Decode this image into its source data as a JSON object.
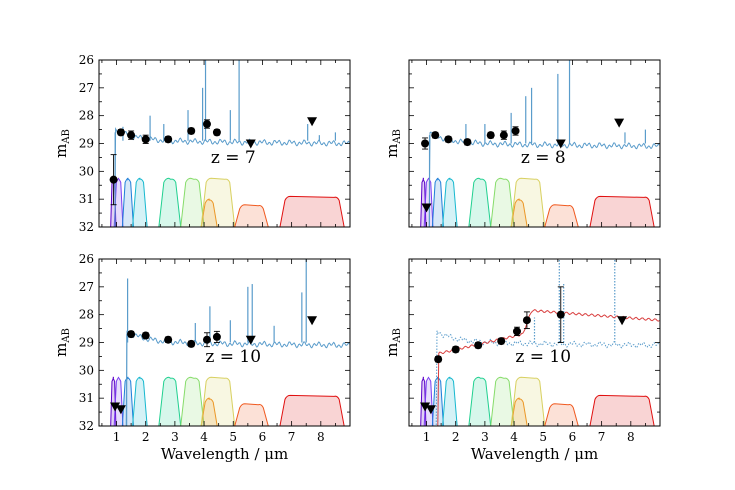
{
  "chart_data": [
    {
      "type": "scatter",
      "panel": "top-left",
      "label": "z = 7",
      "xlabel": "",
      "ylabel": "m_AB",
      "xlim": [
        0.4,
        9.0
      ],
      "ylim": [
        32,
        26
      ],
      "show_x_ticklabels": false,
      "show_y_ticklabels": true,
      "spectrum_level": 28.9,
      "spectrum_break": 0.95,
      "emission_lines": [
        [
          1.22,
          28.4
        ],
        [
          2.15,
          28.0
        ],
        [
          2.62,
          28.3
        ],
        [
          3.45,
          27.8
        ],
        [
          3.95,
          27.0
        ],
        [
          4.05,
          26.0
        ],
        [
          4.9,
          27.8
        ],
        [
          5.2,
          26.0
        ],
        [
          7.55,
          28.3
        ],
        [
          7.95,
          28.7
        ],
        [
          8.5,
          28.6
        ]
      ],
      "points": [
        {
          "x": 0.9,
          "y": 30.3,
          "err": 0.9,
          "upper": false
        },
        {
          "x": 1.15,
          "y": 28.6,
          "err": 0.1,
          "upper": false
        },
        {
          "x": 1.5,
          "y": 28.7,
          "err": 0.15,
          "upper": false
        },
        {
          "x": 2.0,
          "y": 28.85,
          "err": 0.15,
          "upper": false
        },
        {
          "x": 2.77,
          "y": 28.85,
          "err": 0.1,
          "upper": false
        },
        {
          "x": 3.56,
          "y": 28.55,
          "err": 0.1,
          "upper": false
        },
        {
          "x": 4.1,
          "y": 28.3,
          "err": 0.15,
          "upper": false
        },
        {
          "x": 4.44,
          "y": 28.6,
          "err": 0.1,
          "upper": false
        },
        {
          "x": 5.6,
          "y": 29.0,
          "err": 0,
          "upper": true
        },
        {
          "x": 7.7,
          "y": 28.2,
          "err": 0,
          "upper": true
        }
      ]
    },
    {
      "type": "scatter",
      "panel": "top-right",
      "label": "z = 8",
      "xlabel": "",
      "ylabel": "m_AB",
      "xlim": [
        0.4,
        9.0
      ],
      "ylim": [
        32,
        26
      ],
      "show_x_ticklabels": false,
      "show_y_ticklabels": false,
      "spectrum_level": 29.0,
      "spectrum_break": 1.1,
      "emission_lines": [
        [
          2.35,
          28.3
        ],
        [
          3.0,
          28.3
        ],
        [
          3.9,
          27.9
        ],
        [
          4.4,
          27.3
        ],
        [
          4.6,
          27.0
        ],
        [
          5.5,
          26.5
        ],
        [
          5.9,
          26.0
        ],
        [
          7.8,
          28.6
        ],
        [
          8.5,
          28.5
        ]
      ],
      "points": [
        {
          "x": 1.0,
          "y": 31.3,
          "err": 0,
          "upper": true
        },
        {
          "x": 0.95,
          "y": 29.0,
          "err": 0.2,
          "upper": false
        },
        {
          "x": 1.3,
          "y": 28.7,
          "err": 0.1,
          "upper": false
        },
        {
          "x": 1.75,
          "y": 28.85,
          "err": 0.1,
          "upper": false
        },
        {
          "x": 2.4,
          "y": 28.95,
          "err": 0.1,
          "upper": false
        },
        {
          "x": 3.2,
          "y": 28.7,
          "err": 0.1,
          "upper": false
        },
        {
          "x": 3.65,
          "y": 28.7,
          "err": 0.15,
          "upper": false
        },
        {
          "x": 4.05,
          "y": 28.55,
          "err": 0.15,
          "upper": false
        },
        {
          "x": 5.6,
          "y": 29.0,
          "err": 0,
          "upper": true
        },
        {
          "x": 7.6,
          "y": 28.25,
          "err": 0,
          "upper": true
        }
      ]
    },
    {
      "type": "scatter",
      "panel": "bottom-left",
      "label": "z = 10",
      "xlabel": "Wavelength / μm",
      "ylabel": "m_AB",
      "xlim": [
        0.4,
        9.0
      ],
      "ylim": [
        32,
        26
      ],
      "show_x_ticklabels": true,
      "show_y_ticklabels": true,
      "spectrum_level": 29.0,
      "spectrum_break": 1.35,
      "emission_lines": [
        [
          1.38,
          26.7
        ],
        [
          3.7,
          28.3
        ],
        [
          4.2,
          27.7
        ],
        [
          4.9,
          28.2
        ],
        [
          5.5,
          27.0
        ],
        [
          5.65,
          26.9
        ],
        [
          6.4,
          28.4
        ],
        [
          7.35,
          27.2
        ],
        [
          7.5,
          26.0
        ]
      ],
      "points": [
        {
          "x": 0.95,
          "y": 31.3,
          "err": 0,
          "upper": true
        },
        {
          "x": 1.15,
          "y": 31.4,
          "err": 0,
          "upper": true
        },
        {
          "x": 1.5,
          "y": 28.7,
          "err": 0.1,
          "upper": false
        },
        {
          "x": 2.0,
          "y": 28.75,
          "err": 0.1,
          "upper": false
        },
        {
          "x": 2.77,
          "y": 28.9,
          "err": 0.1,
          "upper": false
        },
        {
          "x": 3.56,
          "y": 29.05,
          "err": 0.1,
          "upper": false
        },
        {
          "x": 4.1,
          "y": 28.9,
          "err": 0.25,
          "upper": false
        },
        {
          "x": 4.44,
          "y": 28.8,
          "err": 0.2,
          "upper": false
        },
        {
          "x": 5.6,
          "y": 28.9,
          "err": 0,
          "upper": true
        },
        {
          "x": 7.7,
          "y": 28.2,
          "err": 0,
          "upper": true
        }
      ]
    },
    {
      "type": "scatter",
      "panel": "bottom-right",
      "label": "z = 10",
      "xlabel": "Wavelength / μm",
      "ylabel": "m_AB",
      "xlim": [
        0.4,
        9.0
      ],
      "ylim": [
        32,
        26
      ],
      "show_x_ticklabels": true,
      "show_y_ticklabels": false,
      "spectrum_level": 29.0,
      "spectrum_break": 1.35,
      "dotted_spectrum": true,
      "emission_lines": [
        [
          4.7,
          28.1
        ],
        [
          5.55,
          26.0
        ],
        [
          5.7,
          26.9
        ],
        [
          7.45,
          26.0
        ]
      ],
      "red_model": true,
      "points": [
        {
          "x": 0.95,
          "y": 31.3,
          "err": 0,
          "upper": true
        },
        {
          "x": 1.15,
          "y": 31.4,
          "err": 0,
          "upper": true
        },
        {
          "x": 1.4,
          "y": 29.6,
          "err": 0.1,
          "upper": false
        },
        {
          "x": 2.0,
          "y": 29.25,
          "err": 0.1,
          "upper": false
        },
        {
          "x": 2.77,
          "y": 29.1,
          "err": 0.1,
          "upper": false
        },
        {
          "x": 3.56,
          "y": 28.95,
          "err": 0.1,
          "upper": false
        },
        {
          "x": 4.1,
          "y": 28.6,
          "err": 0.15,
          "upper": false
        },
        {
          "x": 4.44,
          "y": 28.2,
          "err": 0.3,
          "upper": false
        },
        {
          "x": 5.6,
          "y": 28.0,
          "err": 1.0,
          "upper": false
        },
        {
          "x": 7.7,
          "y": 28.2,
          "err": 0,
          "upper": true
        }
      ]
    }
  ],
  "filters": [
    {
      "from": 0.8,
      "to": 0.98,
      "color": "#5b00c8"
    },
    {
      "from": 0.92,
      "to": 1.22,
      "color": "#7a3df0"
    },
    {
      "from": 1.2,
      "to": 1.58,
      "color": "#1f7fd8"
    },
    {
      "from": 1.55,
      "to": 2.05,
      "color": "#17b8cf"
    },
    {
      "from": 2.45,
      "to": 3.2,
      "color": "#20d090"
    },
    {
      "from": 3.2,
      "to": 4.0,
      "color": "#86dc6a"
    },
    {
      "from": 3.9,
      "to": 4.45,
      "color": "#f08a1a"
    },
    {
      "from": 3.9,
      "to": 5.05,
      "color": "#d8d060"
    },
    {
      "from": 5.05,
      "to": 6.2,
      "color": "#f05a20"
    },
    {
      "from": 6.6,
      "to": 8.8,
      "color": "#e01010"
    }
  ],
  "colors": {
    "spectrum": "#5a9ccb",
    "model": "#d94040",
    "points": "#000000"
  }
}
